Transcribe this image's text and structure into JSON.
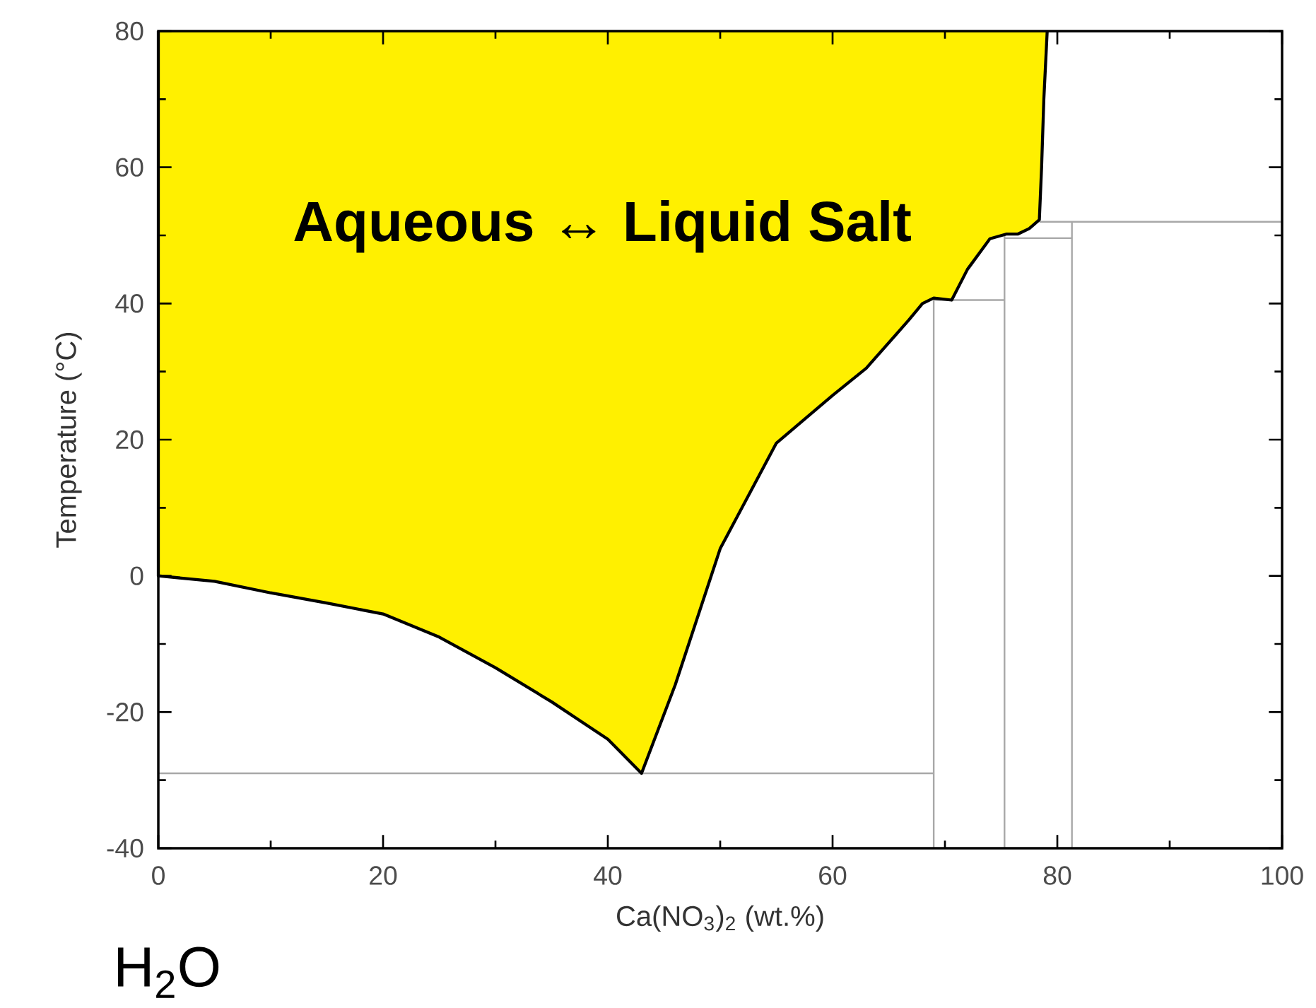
{
  "chart_data": {
    "type": "line",
    "xlabel": "Ca(NO$_{3}$)$_{2}$ (wt.%)",
    "ylabel": "Temperature (°C)",
    "annotations": [
      "Aqueous ↔ Liquid Salt",
      "H$_{2}$O"
    ],
    "xlim": [
      0,
      100
    ],
    "ylim": [
      -40,
      80
    ],
    "xticks": [
      0,
      20,
      40,
      60,
      80,
      100
    ],
    "yticks": [
      -40,
      -20,
      0,
      20,
      40,
      60,
      80
    ],
    "grid": false,
    "marker": "none",
    "series": [
      {
        "type": "area",
        "color": "#fff000",
        "x": [
          0,
          0,
          5,
          10,
          15,
          20,
          25,
          30,
          35,
          40,
          43,
          46,
          50,
          55,
          60,
          63,
          66.8,
          68,
          69,
          70.6,
          72,
          74,
          75.5,
          76.5,
          77.5,
          78.4,
          78.6,
          78.8,
          79.1
        ],
        "values": [
          80,
          0,
          -0.8,
          -2.5,
          -4,
          -5.6,
          -9,
          -13.5,
          -18.5,
          -24,
          -29,
          -16,
          4,
          19.5,
          26.5,
          30.5,
          37.6,
          40,
          40.8,
          40.5,
          45,
          49.5,
          50.2,
          50.2,
          51,
          52.3,
          60,
          70,
          80
        ]
      },
      {
        "color": "#a8a8a8",
        "x": [
          0,
          69
        ],
        "values": [
          -29,
          -29
        ]
      },
      {
        "color": "#a8a8a8",
        "x": [
          69,
          69
        ],
        "values": [
          -40,
          40.5
        ]
      },
      {
        "color": "#a8a8a8",
        "x": [
          69,
          75.3
        ],
        "values": [
          40.5,
          40.5
        ]
      },
      {
        "color": "#a8a8a8",
        "x": [
          75.3,
          75.3
        ],
        "values": [
          -40,
          50
        ]
      },
      {
        "color": "#a8a8a8",
        "x": [
          75.3,
          81.3
        ],
        "values": [
          49.6,
          49.6
        ]
      },
      {
        "color": "#a8a8a8",
        "x": [
          81.3,
          81.3
        ],
        "values": [
          -40,
          52
        ]
      },
      {
        "color": "#a8a8a8",
        "x": [
          78.4,
          100
        ],
        "values": [
          52,
          52
        ]
      }
    ]
  }
}
